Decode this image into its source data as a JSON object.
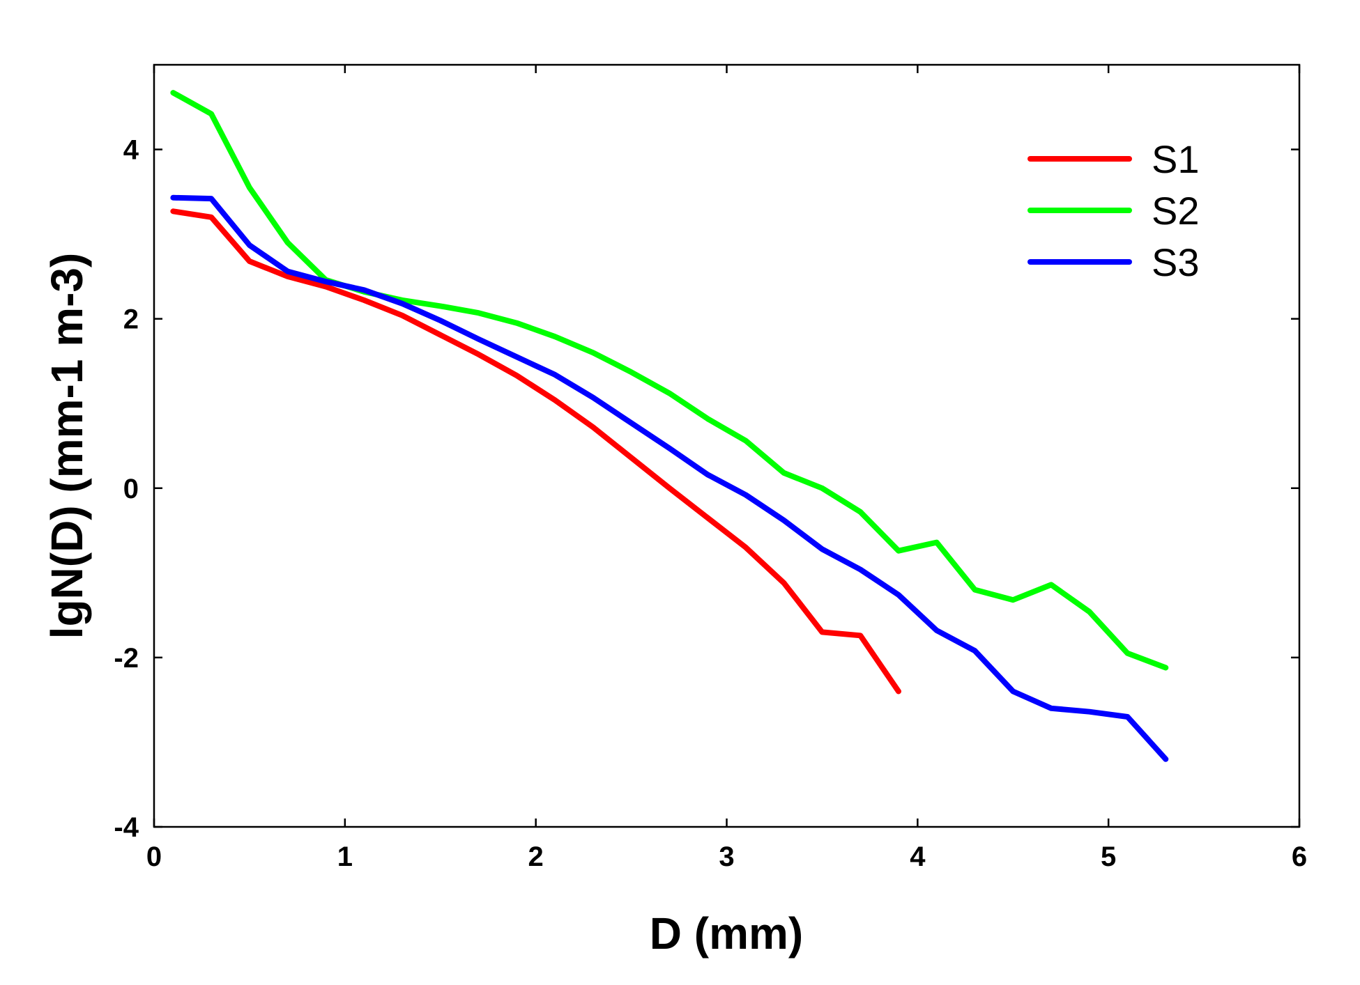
{
  "chart_data": {
    "type": "line",
    "title": "",
    "xlabel": "D (mm)",
    "ylabel": "lgN(D) (mm-1 m-3)",
    "xlim": [
      0,
      6
    ],
    "ylim": [
      -4,
      5
    ],
    "xticks": [
      0,
      1,
      2,
      3,
      4,
      5,
      6
    ],
    "yticks": [
      -4,
      -2,
      0,
      2,
      4
    ],
    "xtick_labels": [
      "0",
      "1",
      "2",
      "3",
      "4",
      "5",
      "6"
    ],
    "ytick_labels": [
      "-4",
      "-2",
      "0",
      "2",
      "4"
    ],
    "grid": false,
    "legend_position": "top-right",
    "series": [
      {
        "name": "S1",
        "color": "#ff0000",
        "x": [
          0.1,
          0.3,
          0.5,
          0.7,
          0.9,
          1.1,
          1.3,
          1.5,
          1.7,
          1.9,
          2.1,
          2.3,
          2.5,
          2.7,
          2.9,
          3.1,
          3.3,
          3.5,
          3.7,
          3.9
        ],
        "y": [
          3.27,
          3.2,
          2.68,
          2.5,
          2.38,
          2.22,
          2.04,
          1.81,
          1.58,
          1.33,
          1.04,
          0.72,
          0.36,
          0.0,
          -0.35,
          -0.7,
          -1.12,
          -1.7,
          -1.74,
          -2.4
        ]
      },
      {
        "name": "S2",
        "color": "#00ff00",
        "x": [
          0.1,
          0.3,
          0.5,
          0.7,
          0.9,
          1.1,
          1.3,
          1.5,
          1.7,
          1.9,
          2.1,
          2.3,
          2.5,
          2.7,
          2.9,
          3.1,
          3.3,
          3.5,
          3.7,
          3.9,
          4.1,
          4.3,
          4.5,
          4.7,
          4.9,
          5.1,
          5.3
        ],
        "y": [
          4.67,
          4.42,
          3.55,
          2.9,
          2.46,
          2.32,
          2.22,
          2.15,
          2.07,
          1.95,
          1.79,
          1.6,
          1.37,
          1.12,
          0.82,
          0.56,
          0.18,
          0.0,
          -0.28,
          -0.74,
          -0.64,
          -1.2,
          -1.32,
          -1.14,
          -1.46,
          -1.95,
          -2.12
        ]
      },
      {
        "name": "S3",
        "color": "#0000ff",
        "x": [
          0.1,
          0.3,
          0.5,
          0.7,
          0.9,
          1.1,
          1.3,
          1.5,
          1.7,
          1.9,
          2.1,
          2.3,
          2.5,
          2.7,
          2.9,
          3.1,
          3.3,
          3.5,
          3.7,
          3.9,
          4.1,
          4.3,
          4.5,
          4.7,
          4.9,
          5.1,
          5.3
        ],
        "y": [
          3.43,
          3.42,
          2.87,
          2.56,
          2.44,
          2.34,
          2.18,
          1.98,
          1.76,
          1.55,
          1.34,
          1.07,
          0.77,
          0.47,
          0.16,
          -0.08,
          -0.38,
          -0.72,
          -0.96,
          -1.26,
          -1.68,
          -1.92,
          -2.4,
          -2.6,
          -2.64,
          -2.7,
          -3.2
        ]
      }
    ]
  }
}
